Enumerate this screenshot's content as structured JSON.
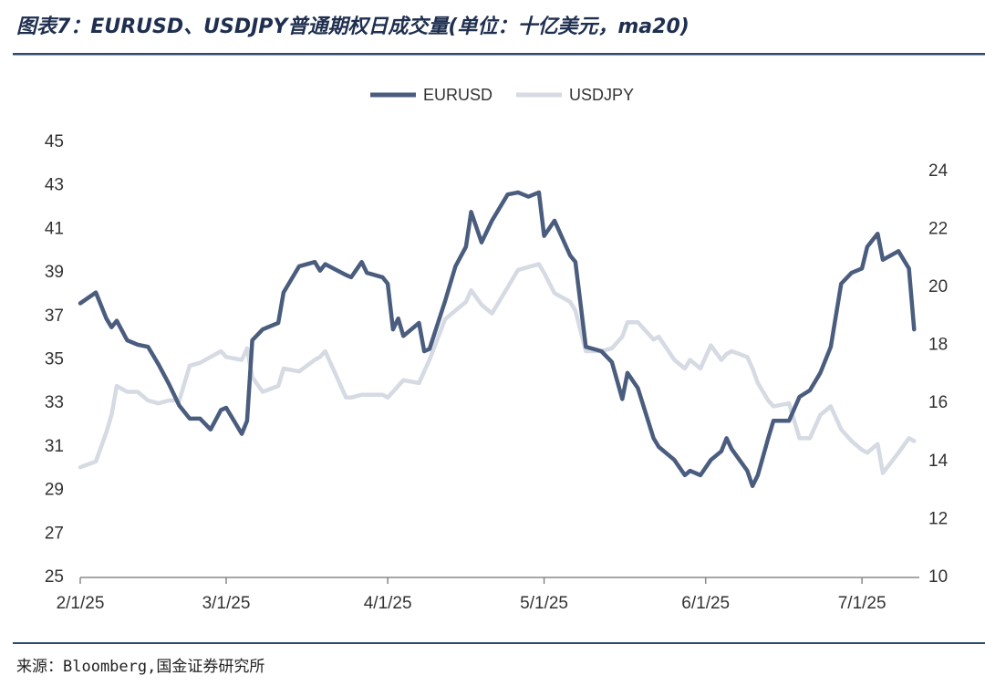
{
  "chart_data": {
    "type": "line",
    "title": "图表7：EURUSD、USDJPY普通期权日成交量(单位：十亿美元，ma20)",
    "source": "来源：Bloomberg,国金证券研究所",
    "legend": "top",
    "x": [
      "2/1/25",
      "2/4/25",
      "2/6/25",
      "2/7/25",
      "2/8/25",
      "2/10/25",
      "2/12/25",
      "2/14/25",
      "2/16/25",
      "2/18/25",
      "2/20/25",
      "2/22/25",
      "2/24/25",
      "2/26/25",
      "2/28/25",
      "3/1/25",
      "3/4/25",
      "3/5/25",
      "3/6/25",
      "3/8/25",
      "3/11/25",
      "3/12/25",
      "3/15/25",
      "3/18/25",
      "3/19/25",
      "3/20/25",
      "3/24/25",
      "3/25/25",
      "3/27/25",
      "3/28/25",
      "3/31/25",
      "4/1/25",
      "4/2/25",
      "4/3/25",
      "4/4/25",
      "4/7/25",
      "4/8/25",
      "4/9/25",
      "4/12/25",
      "4/14/25",
      "4/16/25",
      "4/17/25",
      "4/19/25",
      "4/21/25",
      "4/24/25",
      "4/26/25",
      "4/28/25",
      "4/30/25",
      "5/1/25",
      "5/3/25",
      "5/6/25",
      "5/7/25",
      "5/9/25",
      "5/12/25",
      "5/14/25",
      "5/16/25",
      "5/17/25",
      "5/19/25",
      "5/22/25",
      "5/23/25",
      "5/26/25",
      "5/28/25",
      "5/29/25",
      "5/31/25",
      "6/2/25",
      "6/4/25",
      "6/5/25",
      "6/6/25",
      "6/9/25",
      "6/10/25",
      "6/11/25",
      "6/13/25",
      "6/14/25",
      "6/17/25",
      "6/19/25",
      "6/21/25",
      "6/23/25",
      "6/25/25",
      "6/27/25",
      "6/29/25",
      "7/1/25",
      "7/2/25",
      "7/4/25",
      "7/5/25",
      "7/8/25",
      "7/10/25",
      "7/11/25"
    ],
    "series": [
      {
        "name": "EURUSD",
        "color": "#4a5d7e",
        "axis": "y",
        "values": [
          37.6,
          38.1,
          36.9,
          36.5,
          36.8,
          35.9,
          35.7,
          35.6,
          34.8,
          33.9,
          32.9,
          32.3,
          32.3,
          31.8,
          32.7,
          32.8,
          31.6,
          32.2,
          35.9,
          36.4,
          36.7,
          38.1,
          39.3,
          39.5,
          39.1,
          39.4,
          38.9,
          38.8,
          39.5,
          39.0,
          38.8,
          38.5,
          36.4,
          36.9,
          36.1,
          36.7,
          35.4,
          35.5,
          37.7,
          39.3,
          40.2,
          41.8,
          40.4,
          41.4,
          42.6,
          42.7,
          42.5,
          42.7,
          40.7,
          41.4,
          39.8,
          39.5,
          35.6,
          35.4,
          34.9,
          33.2,
          34.4,
          33.7,
          31.4,
          31.0,
          30.4,
          29.7,
          29.9,
          29.7,
          30.4,
          30.8,
          31.4,
          30.9,
          29.9,
          29.2,
          29.7,
          31.4,
          32.2,
          32.2,
          33.3,
          33.6,
          34.4,
          35.6,
          38.5,
          39.0,
          39.2,
          40.2,
          40.8,
          39.6,
          40.0,
          39.2,
          36.4
        ]
      },
      {
        "name": "USDJPY",
        "color": "#d5dae3",
        "axis": "y2",
        "values": [
          13.8,
          14.0,
          15.0,
          15.6,
          16.6,
          16.4,
          16.4,
          16.1,
          16.0,
          16.1,
          16.1,
          17.3,
          17.4,
          17.6,
          17.8,
          17.6,
          17.5,
          17.9,
          16.9,
          16.4,
          16.6,
          17.2,
          17.1,
          17.5,
          17.6,
          17.8,
          16.2,
          16.2,
          16.3,
          16.3,
          16.3,
          16.2,
          16.4,
          16.6,
          16.8,
          16.7,
          17.1,
          17.5,
          18.9,
          19.2,
          19.5,
          19.9,
          19.4,
          19.1,
          20.0,
          20.6,
          20.7,
          20.8,
          20.5,
          19.8,
          19.5,
          19.2,
          17.8,
          17.8,
          17.9,
          18.3,
          18.8,
          18.8,
          18.2,
          18.3,
          17.5,
          17.2,
          17.5,
          17.2,
          18.0,
          17.5,
          17.7,
          17.8,
          17.6,
          17.2,
          16.7,
          16.1,
          15.9,
          16.0,
          14.8,
          14.8,
          15.6,
          15.9,
          15.1,
          14.7,
          14.4,
          14.3,
          14.6,
          13.6,
          14.3,
          14.8,
          14.7
        ]
      }
    ],
    "xlim": [
      "2/1/25",
      "7/12/25"
    ],
    "xticks": [
      "2/1/25",
      "3/1/25",
      "4/1/25",
      "5/1/25",
      "6/1/25",
      "7/1/25"
    ],
    "ylim": [
      25,
      45
    ],
    "yticks": [
      25,
      27,
      29,
      31,
      33,
      35,
      37,
      39,
      41,
      43,
      45
    ],
    "y2lim": [
      10,
      25
    ],
    "y2ticks": [
      10,
      12,
      14,
      16,
      18,
      20,
      22,
      24
    ],
    "grid": false
  }
}
